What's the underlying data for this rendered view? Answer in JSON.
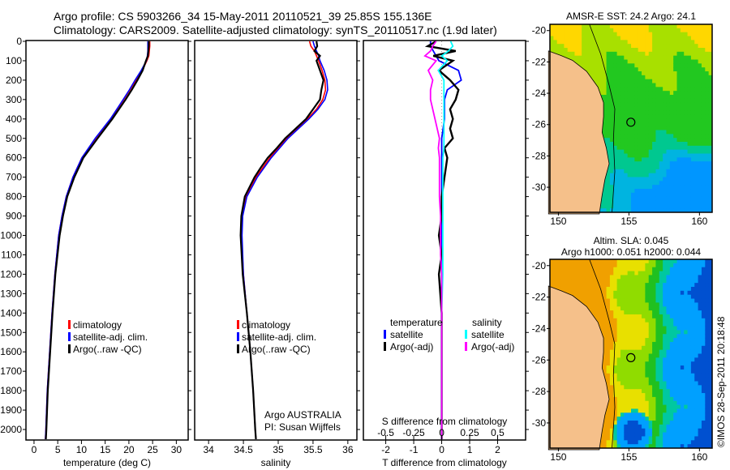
{
  "header": {
    "line1": "Argo profile: CS 5903266_34 15-May-2011 20110521_39 25.85S 155.136E",
    "line2": "Climatology: CARS2009. Satellite-adjusted climatology: synTS_20110517.nc (1.9d later)"
  },
  "colors": {
    "climatology": "#ff0000",
    "satellite": "#0000ff",
    "argo": "#000000",
    "sal_satellite": "#00ffff",
    "sal_argo": "#ff00ff",
    "land": "#f5c08a"
  },
  "chart_data": [
    {
      "type": "line",
      "id": "temperature",
      "xlabel": "temperature (deg C)",
      "xlim": [
        -1.7,
        32.5
      ],
      "ylim": [
        2050,
        0
      ],
      "xticks": [
        0,
        5,
        10,
        15,
        20,
        25,
        30
      ],
      "yticks": [
        0,
        100,
        200,
        300,
        400,
        500,
        600,
        700,
        800,
        900,
        1000,
        1100,
        1200,
        1300,
        1400,
        1500,
        1600,
        1700,
        1800,
        1900,
        2000
      ],
      "depth": [
        0,
        25,
        50,
        75,
        100,
        150,
        200,
        250,
        300,
        400,
        500,
        600,
        700,
        800,
        900,
        1000,
        1200,
        1400,
        1600,
        1800,
        2000,
        2050
      ],
      "series": [
        {
          "name": "climatology",
          "values": [
            24.4,
            24.4,
            24.3,
            24.2,
            23.8,
            22.8,
            21.5,
            20.2,
            18.9,
            16.2,
            13.0,
            10.1,
            8.2,
            6.8,
            5.9,
            5.2,
            4.4,
            3.8,
            3.3,
            2.8,
            2.5,
            2.4
          ]
        },
        {
          "name": "satellite-adj. clim.",
          "values": [
            24.0,
            24.0,
            24.0,
            23.9,
            23.7,
            22.6,
            21.3,
            20.1,
            18.8,
            16.1,
            12.9,
            10.1,
            8.2,
            6.8,
            5.9,
            5.2,
            4.4,
            3.8,
            3.3,
            2.8,
            2.5,
            2.4
          ]
        },
        {
          "name": "Argo(..raw -QC)",
          "values": [
            24.2,
            24.2,
            24.1,
            24.0,
            23.6,
            22.9,
            21.8,
            20.6,
            19.3,
            16.5,
            13.4,
            10.4,
            8.5,
            7.0,
            6.1,
            5.4,
            4.5,
            3.9,
            3.4,
            2.9,
            2.6,
            2.5
          ]
        }
      ],
      "legend": [
        "climatology",
        "satellite-adj. clim.",
        "Argo(..raw -QC)"
      ]
    },
    {
      "type": "line",
      "id": "salinity",
      "xlabel": "salinity",
      "xlim": [
        33.8,
        36.13
      ],
      "ylim": [
        2050,
        0
      ],
      "xticks": [
        34,
        34.5,
        35,
        35.5,
        36
      ],
      "depth": [
        0,
        25,
        50,
        75,
        100,
        150,
        200,
        250,
        300,
        350,
        400,
        450,
        500,
        550,
        600,
        650,
        700,
        800,
        900,
        1000,
        1200,
        1400,
        1600,
        1800,
        2000,
        2050
      ],
      "series": [
        {
          "name": "climatology",
          "values": [
            35.45,
            35.47,
            35.52,
            35.55,
            35.58,
            35.63,
            35.67,
            35.68,
            35.64,
            35.55,
            35.42,
            35.27,
            35.12,
            35.0,
            34.88,
            34.78,
            34.68,
            34.54,
            34.48,
            34.47,
            34.5,
            34.55,
            34.6,
            34.64,
            34.67,
            34.68
          ]
        },
        {
          "name": "satellite-adj. clim.",
          "values": [
            35.5,
            35.52,
            35.55,
            35.58,
            35.6,
            35.66,
            35.7,
            35.71,
            35.67,
            35.57,
            35.44,
            35.29,
            35.14,
            35.02,
            34.9,
            34.8,
            34.7,
            34.55,
            34.49,
            34.48,
            34.5,
            34.55,
            34.6,
            34.64,
            34.67,
            34.68
          ]
        },
        {
          "name": "Argo(..raw -QC)",
          "values": [
            35.55,
            35.56,
            35.52,
            35.6,
            35.55,
            35.6,
            35.65,
            35.62,
            35.6,
            35.5,
            35.4,
            35.25,
            35.1,
            34.98,
            34.85,
            34.75,
            34.66,
            34.52,
            34.47,
            34.46,
            34.49,
            34.55,
            34.6,
            34.64,
            34.67,
            34.68
          ]
        }
      ],
      "legend": [
        "climatology",
        "satellite-adj. clim.",
        "Argo(..raw -QC)"
      ],
      "annotation": [
        "Argo AUSTRALIA",
        "PI: Susan Wijffels"
      ]
    },
    {
      "type": "line",
      "id": "difference",
      "xlabel": "T difference from climatology",
      "xlabel2": "S difference from climatology",
      "xlim": [
        -2.8,
        3.0
      ],
      "xlim2": [
        -0.7,
        0.75
      ],
      "ylim": [
        2050,
        0
      ],
      "xticks": [
        -2,
        -1,
        0,
        1,
        2
      ],
      "xticks2": [
        -0.5,
        -0.25,
        0,
        0.25,
        0.5
      ],
      "depth": [
        0,
        25,
        50,
        75,
        100,
        150,
        200,
        250,
        300,
        350,
        400,
        450,
        500,
        550,
        600,
        700,
        800,
        900,
        1000,
        1100,
        1200,
        1400,
        1600,
        1800,
        2000,
        2050
      ],
      "series": [
        {
          "name": "temperature satellite",
          "axis": "T",
          "values": [
            -0.4,
            -0.4,
            -0.3,
            -0.2,
            -0.1,
            0.6,
            0.7,
            0.2,
            0.1,
            0.1,
            0.1,
            0.05,
            0.0,
            0.0,
            0.0,
            0.0,
            0.0,
            0.0,
            0.0,
            0.0,
            0.0,
            0.0,
            0.0,
            0.0,
            0.0,
            0.0
          ]
        },
        {
          "name": "temperature Argo(-adj)",
          "axis": "T",
          "values": [
            -0.2,
            -0.5,
            0.5,
            -0.3,
            0.4,
            -0.1,
            0.3,
            0.6,
            0.5,
            0.3,
            0.4,
            0.3,
            0.4,
            0.1,
            0.2,
            0.1,
            0.0,
            0.0,
            -0.1,
            0.0,
            -0.1,
            0.0,
            0.0,
            0.0,
            0.0,
            0.0
          ]
        },
        {
          "name": "salinity satellite",
          "axis": "S",
          "values": [
            0.08,
            0.1,
            0.06,
            0.0,
            0.05,
            -0.03,
            0.02,
            0.02,
            0.02,
            0.02,
            0.02,
            0.02,
            0.02,
            0.02,
            0.01,
            0.01,
            0.01,
            0.01,
            0.01,
            0.01,
            0.01,
            0.0,
            0.0,
            0.0,
            0.0,
            0.0
          ]
        },
        {
          "name": "salinity Argo(-adj)",
          "axis": "S",
          "values": [
            -0.05,
            -0.08,
            -0.1,
            -0.15,
            -0.05,
            -0.12,
            -0.08,
            -0.1,
            -0.1,
            -0.08,
            -0.06,
            -0.04,
            -0.02,
            -0.03,
            -0.02,
            -0.02,
            -0.02,
            -0.01,
            -0.01,
            -0.01,
            0.0,
            0.0,
            0.0,
            0.0,
            0.0,
            0.0
          ]
        }
      ],
      "legend": {
        "temperature_title": "temperature",
        "salinity_title": "salinity",
        "t_sat": "satellite",
        "t_argo": "Argo(-adj)",
        "s_sat": "satellite",
        "s_argo": "Argo(-adj)"
      }
    }
  ],
  "maps": [
    {
      "id": "sst",
      "title": "AMSR-E SST: 24.2 Argo: 24.1",
      "xticks": [
        150,
        155,
        160
      ],
      "yticks": [
        -20,
        -22,
        -24,
        -26,
        -28,
        -30
      ],
      "lonlim": [
        149.4,
        160.9
      ],
      "latlim": [
        -19.6,
        -31.6
      ],
      "argo_lon": 155.136,
      "argo_lat": -25.85
    },
    {
      "id": "sla",
      "title1": "Altim. SLA: 0.045",
      "title2": "Argo h1000: 0.051 h2000: 0.044",
      "xticks": [
        150,
        155,
        160
      ],
      "yticks": [
        -20,
        -22,
        -24,
        -26,
        -28,
        -30
      ],
      "lonlim": [
        149.4,
        160.9
      ],
      "latlim": [
        -19.6,
        -31.6
      ],
      "argo_lon": 155.136,
      "argo_lat": -25.85
    }
  ],
  "credit": "©IMOS 28-Sep-2011 20:18:48"
}
